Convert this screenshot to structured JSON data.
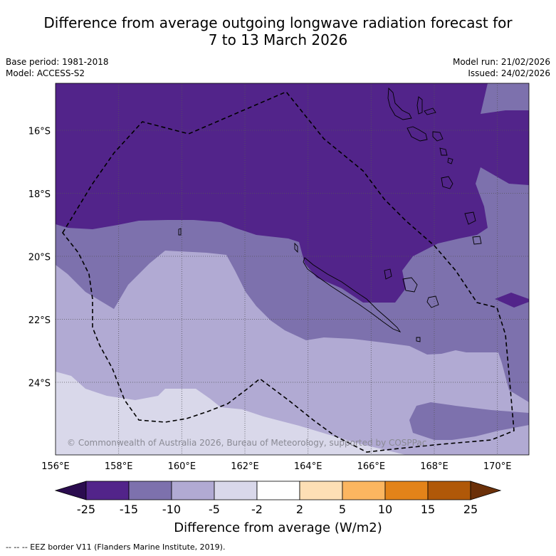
{
  "header": {
    "title_line1": "Difference from average outgoing longwave radiation forecast for",
    "title_line2": "7 to 13 March 2026",
    "base_period": "Base period: 1981-2018",
    "model": "Model: ACCESS-S2",
    "model_run": "Model run: 21/02/2026",
    "issued": "Issued: 24/02/2026"
  },
  "copyright": "© Commonwealth of Australia 2026, Bureau of Meteorology, supported by COSPPac",
  "footer": {
    "eez_legend": "--  --  -- EEZ border V11 (Flanders Marine Institute, 2019)."
  },
  "colors": {
    "purple_dark": "#52248a",
    "purple_mid": "#7d71ad",
    "purple_light": "#b1aad3",
    "purple_pale": "#d9d8ea"
  },
  "chart_data": {
    "type": "heatmap",
    "title": "Difference from average outgoing longwave radiation forecast for 7 to 13 March 2026",
    "x_ticks": [
      "156°E",
      "158°E",
      "160°E",
      "162°E",
      "164°E",
      "166°E",
      "168°E",
      "170°E"
    ],
    "y_ticks": [
      "16°S",
      "18°S",
      "20°S",
      "22°S",
      "24°S"
    ],
    "xlim": [
      156,
      171
    ],
    "ylim": [
      -26.3,
      -14.5
    ],
    "colorbar": {
      "label": "Difference from average (W/m2)",
      "ticks": [
        "-25",
        "-15",
        "-10",
        "-5",
        "-2",
        "2",
        "5",
        "10",
        "15",
        "25"
      ],
      "colors": [
        "#2b0c4f",
        "#52248a",
        "#7d71ad",
        "#b1aad3",
        "#d9d8ea",
        "#ffffff",
        "#fddfb5",
        "#fcb660",
        "#e38319",
        "#b05808",
        "#6b3009"
      ]
    }
  }
}
